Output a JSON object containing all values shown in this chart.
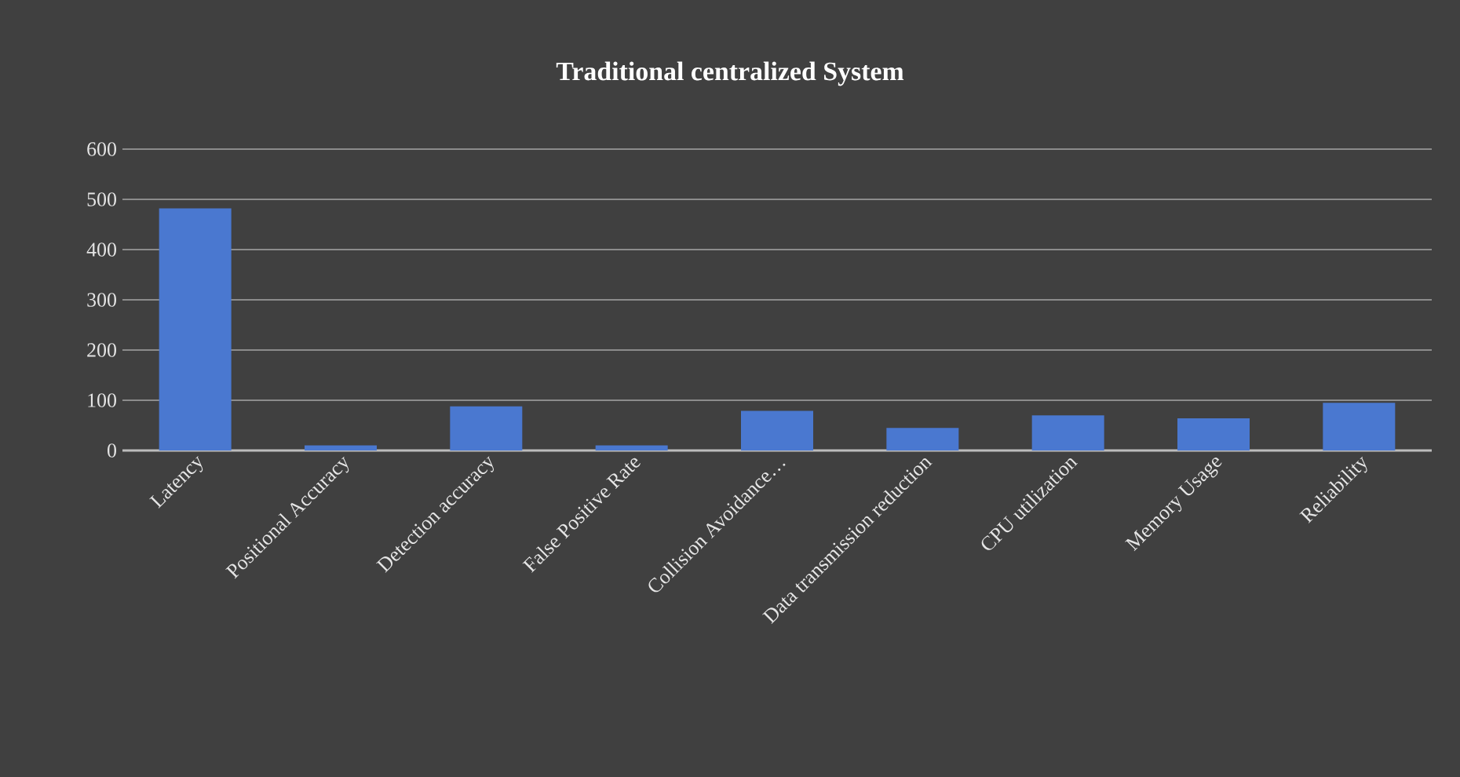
{
  "chart_data": {
    "type": "bar",
    "title": "Traditional centralized System",
    "categories": [
      "Latency",
      "Positional Accuracy",
      "Detection accuracy",
      "False Positive Rate",
      "Collision Avoidance…",
      "Data transmission reduction",
      "CPU utilization",
      "Memory Usage",
      "Reliability"
    ],
    "values": [
      482,
      10,
      88,
      10,
      79,
      45,
      70,
      64,
      95
    ],
    "color": "#4a78d0",
    "ylim": [
      0,
      600
    ],
    "yticks": [
      0,
      100,
      200,
      300,
      400,
      500,
      600
    ],
    "grid": "y"
  }
}
